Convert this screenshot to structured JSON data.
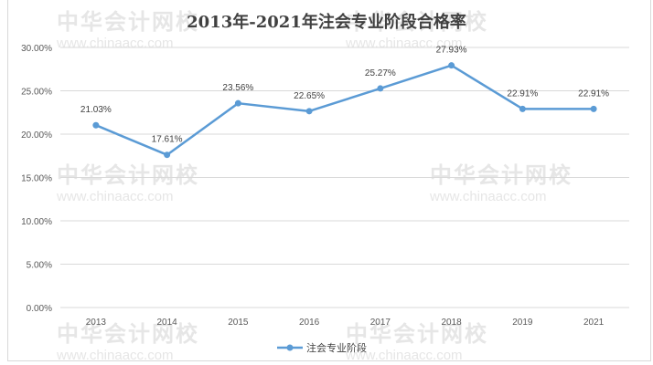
{
  "watermark": {
    "name": "中华会计网校",
    "url": "www.chinaacc.com"
  },
  "chart_data": {
    "type": "line",
    "title": "2013年-2021年注会专业阶段合格率",
    "categories": [
      "2013",
      "2014",
      "2015",
      "2016",
      "2017",
      "2018",
      "2019",
      "2021"
    ],
    "series": [
      {
        "name": "注会专业阶段",
        "values": [
          21.03,
          17.61,
          23.56,
          22.65,
          25.27,
          27.93,
          22.91,
          22.91
        ],
        "labels": [
          "21.03%",
          "17.61%",
          "23.56%",
          "22.65%",
          "25.27%",
          "27.93%",
          "22.91%",
          "22.91%"
        ],
        "color": "#5b9bd5"
      }
    ],
    "ylim": [
      0,
      30
    ],
    "yticks": [
      "0.00%",
      "5.00%",
      "10.00%",
      "15.00%",
      "20.00%",
      "25.00%",
      "30.00%"
    ],
    "grid": true,
    "legend": "bottom",
    "xlabel": "",
    "ylabel": ""
  }
}
